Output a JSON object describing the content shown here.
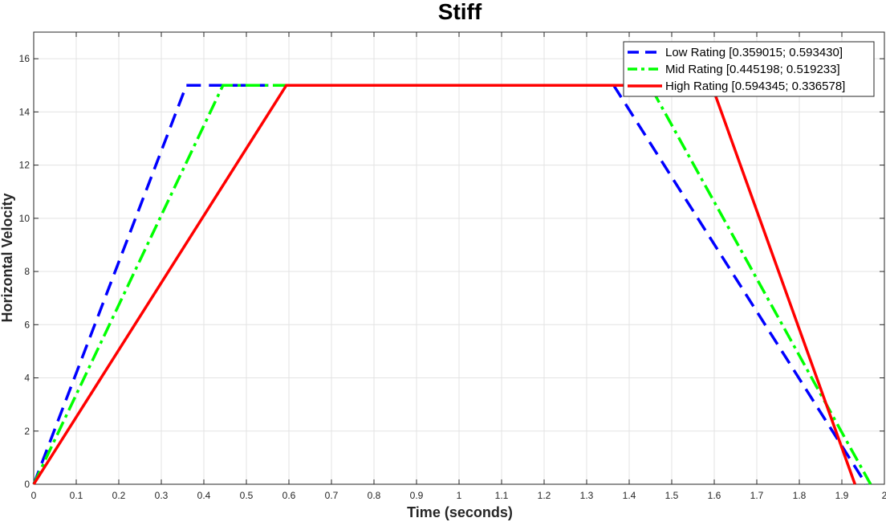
{
  "chart_data": {
    "type": "line",
    "title": "Stiff",
    "xlabel": "Time (seconds)",
    "ylabel": "Horizontal Velocity",
    "xlim": [
      0,
      2
    ],
    "ylim": [
      0,
      17
    ],
    "xticks": [
      0,
      0.1,
      0.2,
      0.3,
      0.4,
      0.5,
      0.6,
      0.7,
      0.8,
      0.9,
      1,
      1.1,
      1.2,
      1.3,
      1.4,
      1.5,
      1.6,
      1.7,
      1.8,
      1.9,
      2
    ],
    "yticks": [
      0,
      2,
      4,
      6,
      8,
      10,
      12,
      14,
      16
    ],
    "xtick_labels": [
      "0",
      "0.1",
      "0.2",
      "0.3",
      "0.4",
      "0.5",
      "0.6",
      "0.7",
      "0.8",
      "0.9",
      "1",
      "1.1",
      "1.2",
      "1.3",
      "1.4",
      "1.5",
      "1.6",
      "1.7",
      "1.8",
      "1.9",
      "2"
    ],
    "ytick_labels": [
      "0",
      "2",
      "4",
      "6",
      "8",
      "10",
      "12",
      "14",
      "16"
    ],
    "grid": true,
    "legend_position": "top-right",
    "series": [
      {
        "name": "Low Rating [0.359015; 0.593430]",
        "color": "#0000ff",
        "style": "dashed",
        "x": [
          0,
          0.359,
          1.3635,
          1.9569
        ],
        "y": [
          0,
          15,
          15,
          0
        ]
      },
      {
        "name": "Mid Rating [0.445198; 0.519233]",
        "color": "#00ff00",
        "style": "dashdot",
        "x": [
          0,
          0.445,
          1.4483,
          1.9675
        ],
        "y": [
          0,
          15,
          15,
          0
        ]
      },
      {
        "name": "High Rating [0.594345; 0.336578]",
        "color": "#ff0000",
        "style": "solid",
        "x": [
          0,
          0.594,
          1.5942,
          1.9308
        ],
        "y": [
          0,
          15,
          15,
          0
        ]
      }
    ]
  }
}
